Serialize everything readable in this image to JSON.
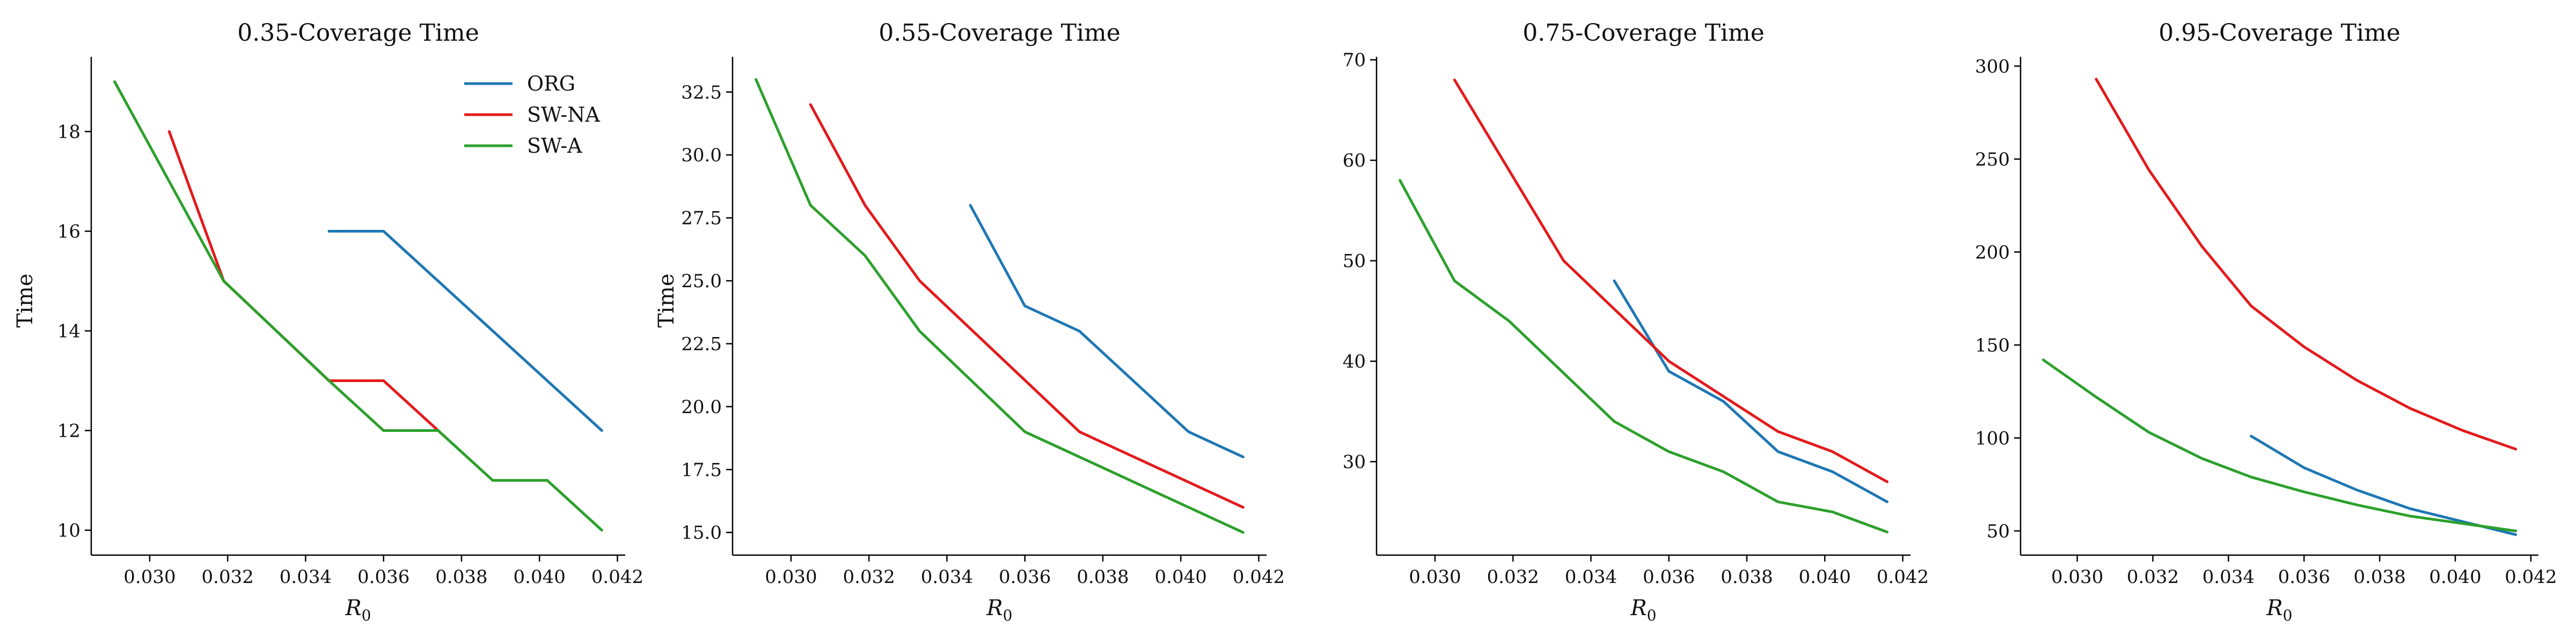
{
  "colors": {
    "ORG": "#1f77b4",
    "SW-NA": "#e31a1c",
    "SW-A": "#2ca02c"
  },
  "legend": {
    "position": "top-right",
    "panel": 0,
    "entries": [
      "ORG",
      "SW-NA",
      "SW-A"
    ]
  },
  "chart_data": [
    {
      "type": "line",
      "title": "0.35-Coverage Time",
      "xlabel": "R",
      "xlabel_sub": "0",
      "ylabel": "Time",
      "xlim": [
        0.0285,
        0.0422
      ],
      "ylim": [
        9.5,
        19.5
      ],
      "xticks": [
        "0.030",
        "0.032",
        "0.034",
        "0.036",
        "0.038",
        "0.040",
        "0.042"
      ],
      "yticks": [
        "10",
        "12",
        "14",
        "16",
        "18"
      ],
      "series": [
        {
          "name": "ORG",
          "x": [
            0.0346,
            0.036,
            0.0416
          ],
          "y": [
            16,
            16,
            12
          ]
        },
        {
          "name": "SW-NA",
          "x": [
            0.0305,
            0.0319,
            0.0346,
            0.036,
            0.0374
          ],
          "y": [
            18,
            15,
            13,
            13,
            12
          ]
        },
        {
          "name": "SW-A",
          "x": [
            0.0291,
            0.0319,
            0.0346,
            0.036,
            0.0374,
            0.0388,
            0.0402,
            0.0416
          ],
          "y": [
            19,
            15,
            13,
            12,
            12,
            11,
            11,
            10
          ]
        }
      ]
    },
    {
      "type": "line",
      "title": "0.55-Coverage Time",
      "xlabel": "R",
      "xlabel_sub": "0",
      "ylabel": "Time",
      "xlim": [
        0.0285,
        0.0422
      ],
      "ylim": [
        14.1,
        33.9
      ],
      "xticks": [
        "0.030",
        "0.032",
        "0.034",
        "0.036",
        "0.038",
        "0.040",
        "0.042"
      ],
      "yticks": [
        "15.0",
        "17.5",
        "20.0",
        "22.5",
        "25.0",
        "27.5",
        "30.0",
        "32.5"
      ],
      "series": [
        {
          "name": "ORG",
          "x": [
            0.0346,
            0.036,
            0.0374,
            0.0402,
            0.0416
          ],
          "y": [
            28,
            24,
            23,
            19,
            18
          ]
        },
        {
          "name": "SW-NA",
          "x": [
            0.0305,
            0.0319,
            0.0333,
            0.0374,
            0.0416
          ],
          "y": [
            32,
            28,
            25,
            19,
            16
          ]
        },
        {
          "name": "SW-A",
          "x": [
            0.0291,
            0.0305,
            0.0319,
            0.0333,
            0.036,
            0.0416
          ],
          "y": [
            33,
            28,
            26,
            23,
            19,
            15
          ]
        }
      ]
    },
    {
      "type": "line",
      "title": "0.75-Coverage Time",
      "xlabel": "R",
      "xlabel_sub": "0",
      "ylabel": "",
      "xlim": [
        0.0285,
        0.0422
      ],
      "ylim": [
        20.7,
        70.3
      ],
      "xticks": [
        "0.030",
        "0.032",
        "0.034",
        "0.036",
        "0.038",
        "0.040",
        "0.042"
      ],
      "yticks": [
        "30",
        "40",
        "50",
        "60",
        "70"
      ],
      "series": [
        {
          "name": "ORG",
          "x": [
            0.0346,
            0.036,
            0.0374,
            0.0388,
            0.0402,
            0.0416
          ],
          "y": [
            48,
            39,
            36,
            31,
            29,
            26
          ]
        },
        {
          "name": "SW-NA",
          "x": [
            0.0305,
            0.0333,
            0.036,
            0.0388,
            0.0402,
            0.0416
          ],
          "y": [
            68,
            50,
            40,
            33,
            31,
            28
          ]
        },
        {
          "name": "SW-A",
          "x": [
            0.0291,
            0.0305,
            0.0319,
            0.0346,
            0.036,
            0.0374,
            0.0388,
            0.0402,
            0.0416
          ],
          "y": [
            58,
            48,
            44,
            34,
            31,
            29,
            26,
            25,
            23
          ]
        }
      ]
    },
    {
      "type": "line",
      "title": "0.95-Coverage Time",
      "xlabel": "R",
      "xlabel_sub": "0",
      "ylabel": "",
      "xlim": [
        0.0285,
        0.0422
      ],
      "ylim": [
        37.0,
        305.0
      ],
      "xticks": [
        "0.030",
        "0.032",
        "0.034",
        "0.036",
        "0.038",
        "0.040",
        "0.042"
      ],
      "yticks": [
        "50",
        "100",
        "150",
        "200",
        "250",
        "300"
      ],
      "series": [
        {
          "name": "ORG",
          "x": [
            0.0346,
            0.036,
            0.0374,
            0.0388,
            0.0402,
            0.0416
          ],
          "y": [
            101,
            84,
            72,
            62,
            55,
            48
          ]
        },
        {
          "name": "SW-NA",
          "x": [
            0.0305,
            0.0319,
            0.0333,
            0.0346,
            0.036,
            0.0374,
            0.0388,
            0.0402,
            0.0416
          ],
          "y": [
            293,
            244,
            203,
            171,
            149,
            131,
            116,
            104,
            94
          ]
        },
        {
          "name": "SW-A",
          "x": [
            0.0291,
            0.0305,
            0.0319,
            0.0333,
            0.0346,
            0.036,
            0.0374,
            0.0388,
            0.0402,
            0.0416
          ],
          "y": [
            142,
            122,
            103,
            89,
            79,
            71,
            64,
            58,
            54,
            50
          ]
        }
      ]
    }
  ]
}
